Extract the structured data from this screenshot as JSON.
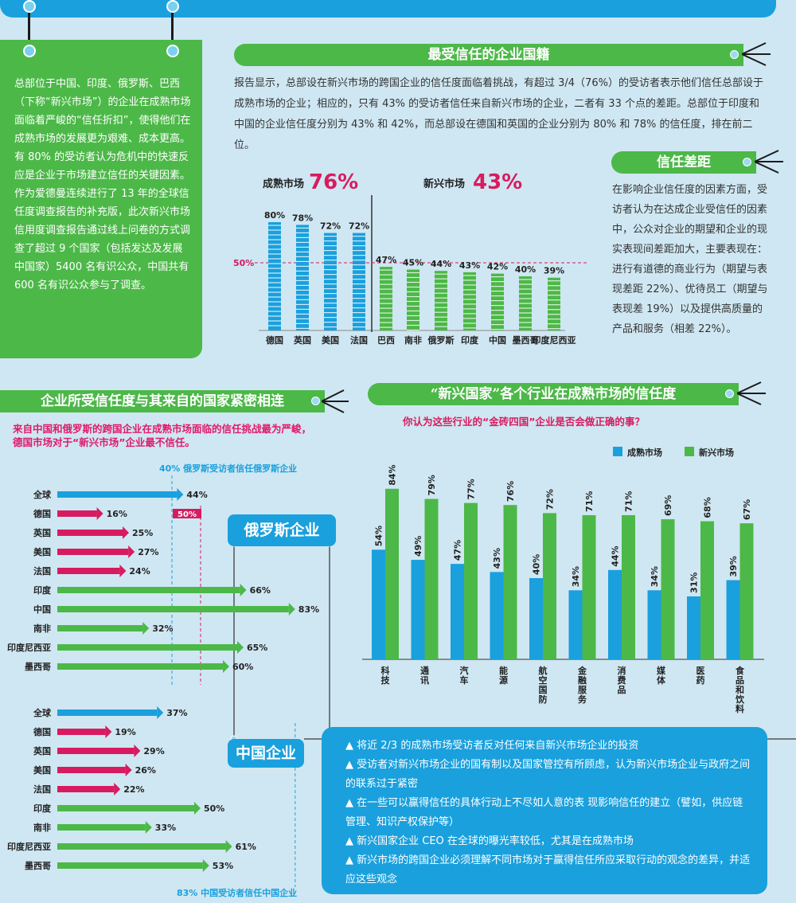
{
  "left_box": {
    "p1": "总部位于中国、印度、俄罗斯、巴西（下称“新兴市场”）的企业在成熟市场面临着严峻的“信任折扣”，使得他们在成熟市场的发展更为艰难、成本更高。有 80% 的受访者认为危机中的快速反应是企业于市场建立信任的关键因素。",
    "p2": "作为爱德曼连续进行了 13 年的全球信任度调查报告的补充版，此次新兴市场信用度调查报告通过线上问卷的方式调查了超过 9 个国家（包括发达及发展中国家）5400 名有识公众，中国共有 600 名有识公众参与了调查。"
  },
  "sections": {
    "nationality_title": "最受信任的企业国籍",
    "nationality_text": "报告显示，总部设在新兴市场的跨国企业的信任度面临着挑战，有超过 3/4（76%）的受访者表示他们信任总部设于成熟市场的企业；相应的，只有 43% 的受访者信任来自新兴市场的企业，二者有 33 个点的差距。总部位于印度和中国的企业信任度分别为 43% 和 42%，而总部设在德国和英国的企业分别为 80% 和 78% 的信任度，排在前二位。",
    "gap_title": "信任差距",
    "gap_text": "在影响企业信任度的因素方面，受访者认为在达成企业受信任的因素中，公众对企业的期望和企业的现实表现间差距加大，主要表现在：进行有道德的商业行为（期望与表现差距 22%）、优待员工（期望与表现差 19%）以及提供高质量的产品和服务（相差 22%）。",
    "country_title": "企业所受信任度与其来自的国家紧密相连",
    "country_sub": "来自中国和俄罗斯的跨国企业在成熟市场面临的信任挑战最为严峻，德国市场对于“新兴市场”企业最不信任。",
    "industry_title": "“新兴国家”各个行业在成熟市场的信任度",
    "industry_sub": "你认为这些行业的“金砖四国”企业是否会做正确的事？",
    "russia_label": "俄罗斯企业",
    "china_label": "中国企业"
  },
  "bullets": [
    "▲ 将近 2/3 的成熟市场受访者反对任何来自新兴市场企业的投资",
    "▲ 受访者对新兴市场企业的国有制以及国家管控有所顾虑，认为新兴市场企业与政府之间的联系过于紧密",
    "▲ 在一些可以赢得信任的具体行动上不尽如人意的表 现影响信任的建立（譬如，供应链管理、知识产权保护等）",
    "▲ 新兴国家企业 CEO 在全球的曝光率较低，尤其是在成熟市场",
    "▲ 新兴市场的跨国企业必须理解不同市场对于赢得信任所应采取行动的观念的差异，并适应这些观念"
  ],
  "colors": {
    "blue": "#1aa0dd",
    "green": "#4cb848",
    "red": "#d81b60",
    "bg": "#cfe7f2"
  },
  "chart_data": [
    {
      "type": "bar",
      "title": "",
      "group_labels": [
        "成熟市场",
        "新兴市场"
      ],
      "group_values": [
        "76%",
        "43%"
      ],
      "categories": [
        "德国",
        "英国",
        "美国",
        "法国",
        "巴西",
        "南非",
        "俄罗斯",
        "印度",
        "中国",
        "墨西哥",
        "印度尼西亚"
      ],
      "values": [
        80,
        78,
        72,
        72,
        47,
        45,
        44,
        43,
        42,
        40,
        39
      ],
      "value_labels": [
        "80%",
        "78%",
        "72%",
        "72%",
        "47%",
        "45%",
        "44%",
        "43%",
        "42%",
        "40%",
        "39%"
      ],
      "reference_line": 50,
      "reference_label": "50%",
      "ylim": [
        0,
        100
      ]
    },
    {
      "type": "bar",
      "orientation": "horizontal",
      "title": "",
      "categories": [
        "全球",
        "德国",
        "英国",
        "美国",
        "法国",
        "印度",
        "中国",
        "南非",
        "印度尼西亚",
        "墨西哥"
      ],
      "values": [
        44,
        16,
        25,
        27,
        24,
        66,
        83,
        32,
        65,
        60
      ],
      "value_labels": [
        "44%",
        "16%",
        "25%",
        "27%",
        "24%",
        "66%",
        "83%",
        "32%",
        "65%",
        "60%"
      ],
      "reference_line": 50,
      "reference_label": "50%",
      "note": "40% 俄罗斯受访者信任俄罗斯企业",
      "note_value": 40
    },
    {
      "type": "bar",
      "orientation": "horizontal",
      "title": "",
      "categories": [
        "全球",
        "德国",
        "英国",
        "美国",
        "法国",
        "印度",
        "南非",
        "印度尼西亚",
        "墨西哥"
      ],
      "values": [
        37,
        19,
        29,
        26,
        22,
        50,
        33,
        61,
        53
      ],
      "value_labels": [
        "37%",
        "19%",
        "29%",
        "26%",
        "22%",
        "50%",
        "33%",
        "61%",
        "53%"
      ],
      "note": "83% 中国受访者信任中国企业",
      "note_value": 83
    },
    {
      "type": "bar",
      "title": "",
      "categories": [
        "科技",
        "通讯",
        "汽车",
        "能源",
        "航空国防",
        "金融服务",
        "消费品",
        "媒体",
        "医药",
        "食品和饮料"
      ],
      "series": [
        {
          "name": "成熟市场",
          "values": [
            54,
            49,
            47,
            43,
            40,
            34,
            44,
            34,
            31,
            39
          ],
          "labels": [
            "54%",
            "49%",
            "47%",
            "43%",
            "40%",
            "34%",
            "44%",
            "34%",
            "31%",
            "39%"
          ]
        },
        {
          "name": "新兴市场",
          "values": [
            84,
            79,
            77,
            76,
            72,
            71,
            71,
            69,
            68,
            67
          ],
          "labels": [
            "84%",
            "79%",
            "77%",
            "76%",
            "72%",
            "71%",
            "71%",
            "69%",
            "68%",
            "67%"
          ]
        }
      ],
      "ylim": [
        0,
        100
      ]
    }
  ]
}
